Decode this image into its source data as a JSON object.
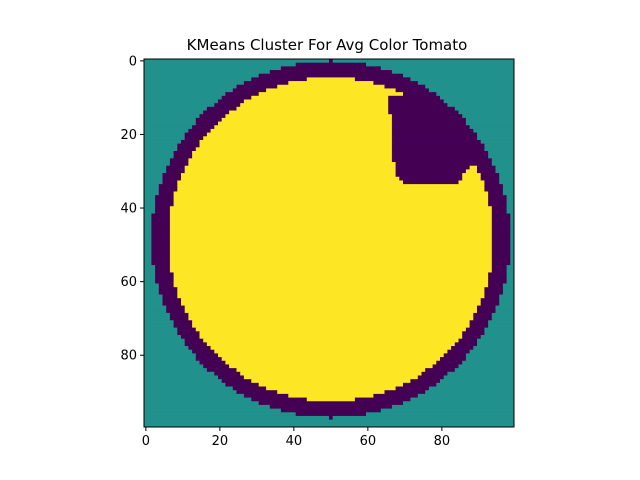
{
  "chart_data": {
    "type": "heatmap",
    "title": "KMeans Cluster For Avg Color Tomato",
    "xlabel": "",
    "ylabel": "",
    "image_shape": [
      100,
      100
    ],
    "xlim": [
      -0.5,
      99.5
    ],
    "ylim": [
      99.5,
      -0.5
    ],
    "x_ticks": [
      0,
      20,
      40,
      60,
      80
    ],
    "y_ticks": [
      0,
      20,
      40,
      60,
      80
    ],
    "grid": false,
    "legend": "none",
    "clusters": [
      {
        "id": 0,
        "description": "background",
        "color": "#21918c"
      },
      {
        "id": 1,
        "description": "tomato outer ring",
        "color": "#440154"
      },
      {
        "id": 2,
        "description": "tomato interior",
        "color": "#fde725"
      }
    ],
    "ring": {
      "center_x": 50,
      "center_y": 48.5,
      "radius": 48.5,
      "thickness": 4.5
    },
    "notch": {
      "polygon": [
        [
          66,
          10
        ],
        [
          69,
          9
        ],
        [
          74,
          10
        ],
        [
          79,
          12
        ],
        [
          84,
          15
        ],
        [
          88,
          19
        ],
        [
          90,
          23
        ],
        [
          91,
          26
        ],
        [
          86,
          31
        ],
        [
          85,
          33
        ],
        [
          80,
          34
        ],
        [
          75,
          34
        ],
        [
          70,
          33
        ],
        [
          68,
          31
        ],
        [
          67,
          27
        ],
        [
          66.5,
          20
        ],
        [
          66,
          14
        ]
      ]
    }
  }
}
